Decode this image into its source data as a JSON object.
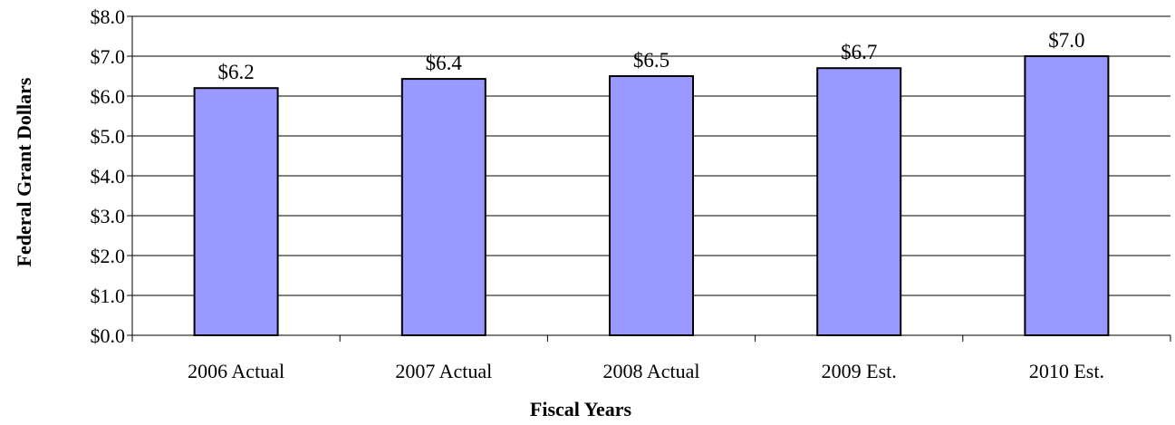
{
  "chart_data": {
    "type": "bar",
    "categories": [
      "2006 Actual",
      "2007 Actual",
      "2008 Actual",
      "2009 Est.",
      "2010 Est."
    ],
    "values": [
      6.2,
      6.43,
      6.5,
      6.7,
      7.0
    ],
    "data_labels": [
      "$6.2",
      "$6.4",
      "$6.5",
      "$6.7",
      "$7.0"
    ],
    "xlabel": "Fiscal Years",
    "ylabel": "Federal Grant Dollars",
    "ylim": [
      0,
      8
    ],
    "yticks": [
      {
        "value": 0,
        "label": "$0.0"
      },
      {
        "value": 1,
        "label": "$1.0"
      },
      {
        "value": 2,
        "label": "$2.0"
      },
      {
        "value": 3,
        "label": "$3.0"
      },
      {
        "value": 4,
        "label": "$4.0"
      },
      {
        "value": 5,
        "label": "$5.0"
      },
      {
        "value": 6,
        "label": "$6.0"
      },
      {
        "value": 7,
        "label": "$7.0"
      },
      {
        "value": 8,
        "label": "$8.0"
      }
    ],
    "grid": true,
    "legend": "none",
    "bar_color": "#9999ff",
    "bar_edge_color": "#000000"
  }
}
